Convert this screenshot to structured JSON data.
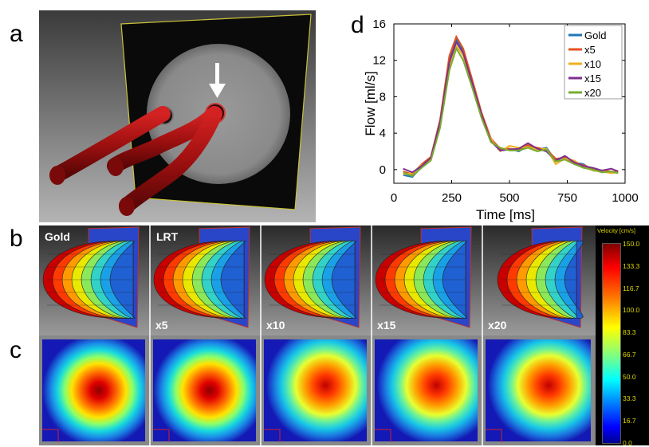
{
  "panel_labels": {
    "a": "a",
    "b": "b",
    "c": "c",
    "d": "d"
  },
  "panel_b": {
    "labels": [
      "Gold",
      "LRT"
    ],
    "factors": [
      "x5",
      "x10",
      "x15",
      "x20"
    ]
  },
  "colorbar": {
    "title": "Velocity [cm/s]",
    "ticks": [
      "150.0",
      "133.3",
      "116.7",
      "100.0",
      "83.3",
      "66.7",
      "50.0",
      "33.3",
      "16.7",
      "0.0"
    ]
  },
  "colors": {
    "gold": "#1f77b4",
    "x5": "#e6521f",
    "x10": "#edb120",
    "x15": "#7e2f8e",
    "x20": "#77ac30",
    "vessel": "#b01010"
  },
  "chart_data": {
    "type": "line",
    "xlabel": "Time [ms]",
    "ylabel": "Flow [ml/s]",
    "xlim": [
      0,
      1000
    ],
    "ylim": [
      -1.5,
      16
    ],
    "xticks": [
      0,
      250,
      500,
      750,
      1000
    ],
    "yticks": [
      0,
      4,
      8,
      12,
      16
    ],
    "legend_position": "top-right",
    "x": [
      40,
      80,
      120,
      160,
      200,
      240,
      270,
      300,
      340,
      380,
      420,
      460,
      500,
      540,
      580,
      620,
      660,
      700,
      740,
      780,
      820,
      860,
      900,
      940,
      970
    ],
    "series": [
      {
        "name": "Gold",
        "values": [
          -0.6,
          -0.8,
          0.3,
          1.2,
          5.0,
          12.0,
          14.3,
          13.0,
          9.5,
          6.0,
          3.2,
          2.2,
          2.3,
          2.0,
          2.6,
          2.2,
          2.4,
          1.0,
          1.4,
          0.8,
          0.6,
          -0.1,
          -0.2,
          -0.3,
          -0.2
        ]
      },
      {
        "name": "x5",
        "values": [
          -0.2,
          -0.5,
          0.6,
          1.4,
          5.5,
          12.5,
          14.6,
          13.3,
          9.8,
          6.2,
          3.4,
          2.3,
          2.3,
          2.2,
          2.7,
          2.4,
          2.2,
          1.2,
          1.3,
          0.7,
          0.5,
          0.1,
          -0.1,
          -0.2,
          -0.3
        ]
      },
      {
        "name": "x10",
        "values": [
          -0.5,
          -0.4,
          0.5,
          1.1,
          4.8,
          11.4,
          13.6,
          12.5,
          9.2,
          5.8,
          3.3,
          2.0,
          2.6,
          2.4,
          2.5,
          2.2,
          2.3,
          0.6,
          1.2,
          1.0,
          0.3,
          -0.1,
          -0.2,
          -0.4,
          -0.3
        ]
      },
      {
        "name": "x15",
        "values": [
          0.1,
          -0.3,
          0.4,
          1.3,
          5.2,
          11.8,
          14.0,
          12.8,
          9.4,
          6.0,
          3.1,
          2.1,
          2.2,
          2.3,
          2.9,
          2.3,
          2.0,
          1.0,
          1.5,
          0.8,
          0.4,
          0.2,
          -0.1,
          0.1,
          -0.2
        ]
      },
      {
        "name": "x20",
        "values": [
          -0.3,
          -0.7,
          0.2,
          1.0,
          4.6,
          10.9,
          13.3,
          12.0,
          8.9,
          5.6,
          3.0,
          2.4,
          2.1,
          2.1,
          2.4,
          2.0,
          2.2,
          0.9,
          1.1,
          0.6,
          0.2,
          0.0,
          -0.3,
          -0.2,
          -0.4
        ]
      }
    ]
  }
}
